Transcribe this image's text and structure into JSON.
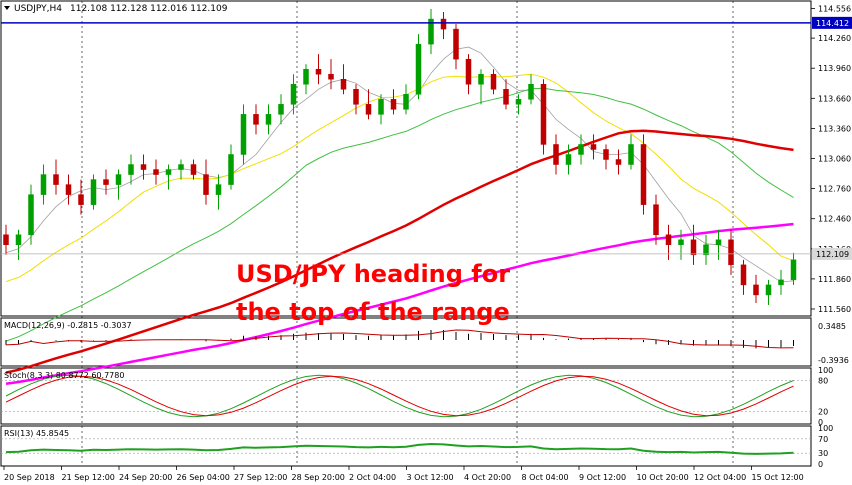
{
  "header": {
    "symbol": "USDJPY,H4",
    "ohlc": "112.108 112.128 112.016 112.109"
  },
  "annotation": "USD/JPY heading for the top of the range",
  "colors": {
    "bull": "#00a000",
    "bear": "#c00000",
    "sma20": "#a0a0a0",
    "sma50": "#f0e000",
    "sma100": "#40c040",
    "sma200": "#e00000",
    "sma240": "#ff00ff",
    "level": "#0000c0",
    "annotation": "#ff0000",
    "macd_signal": "#c00000",
    "stoch_main": "#20a020",
    "stoch_signal": "#e00000",
    "rsi": "#20a020"
  },
  "chart_data": [
    {
      "type": "candlestick",
      "name": "price",
      "ylim": [
        111.5,
        114.62
      ],
      "y_ticks": [
        "114.556",
        "114.260",
        "113.960",
        "113.660",
        "113.360",
        "113.060",
        "112.760",
        "112.460",
        "112.160",
        "111.860",
        "111.560"
      ],
      "level": {
        "value": 114.412,
        "label": "114.412"
      },
      "current": {
        "value": 112.109,
        "label": "112.109"
      },
      "ohlc": [
        [
          112.3,
          112.4,
          112.1,
          112.2
        ],
        [
          112.2,
          112.35,
          112.05,
          112.3
        ],
        [
          112.3,
          112.8,
          112.2,
          112.7
        ],
        [
          112.7,
          113.0,
          112.6,
          112.9
        ],
        [
          112.9,
          113.05,
          112.7,
          112.8
        ],
        [
          112.8,
          112.9,
          112.6,
          112.7
        ],
        [
          112.7,
          112.85,
          112.5,
          112.6
        ],
        [
          112.6,
          112.9,
          112.55,
          112.85
        ],
        [
          112.85,
          112.95,
          112.7,
          112.8
        ],
        [
          112.8,
          112.95,
          112.65,
          112.9
        ],
        [
          112.9,
          113.1,
          112.8,
          113.0
        ],
        [
          113.0,
          113.1,
          112.85,
          112.95
        ],
        [
          112.95,
          113.05,
          112.8,
          112.9
        ],
        [
          112.9,
          113.0,
          112.75,
          112.95
        ],
        [
          112.95,
          113.05,
          112.85,
          113.0
        ],
        [
          113.0,
          113.05,
          112.85,
          112.9
        ],
        [
          112.9,
          113.05,
          112.6,
          112.7
        ],
        [
          112.7,
          112.9,
          112.55,
          112.8
        ],
        [
          112.8,
          113.2,
          112.75,
          113.1
        ],
        [
          113.1,
          113.6,
          113.0,
          113.5
        ],
        [
          113.5,
          113.6,
          113.3,
          113.4
        ],
        [
          113.4,
          113.6,
          113.3,
          113.5
        ],
        [
          113.5,
          113.7,
          113.4,
          113.6
        ],
        [
          113.6,
          113.9,
          113.5,
          113.8
        ],
        [
          113.8,
          114.0,
          113.7,
          113.95
        ],
        [
          113.95,
          114.1,
          113.8,
          113.9
        ],
        [
          113.9,
          114.05,
          113.75,
          113.85
        ],
        [
          113.85,
          114.0,
          113.7,
          113.75
        ],
        [
          113.75,
          113.8,
          113.5,
          113.6
        ],
        [
          113.6,
          113.75,
          113.45,
          113.5
        ],
        [
          113.5,
          113.7,
          113.4,
          113.65
        ],
        [
          113.65,
          113.75,
          113.5,
          113.55
        ],
        [
          113.55,
          113.8,
          113.5,
          113.7
        ],
        [
          113.7,
          114.3,
          113.65,
          114.2
        ],
        [
          114.2,
          114.55,
          114.1,
          114.45
        ],
        [
          114.45,
          114.52,
          114.25,
          114.35
        ],
        [
          114.35,
          114.4,
          113.95,
          114.05
        ],
        [
          114.05,
          114.1,
          113.7,
          113.8
        ],
        [
          113.8,
          113.95,
          113.6,
          113.9
        ],
        [
          113.9,
          113.95,
          113.7,
          113.75
        ],
        [
          113.75,
          113.85,
          113.55,
          113.6
        ],
        [
          113.6,
          113.7,
          113.5,
          113.65
        ],
        [
          113.65,
          113.9,
          113.6,
          113.8
        ],
        [
          113.8,
          113.85,
          113.1,
          113.2
        ],
        [
          113.2,
          113.3,
          112.9,
          113.0
        ],
        [
          113.0,
          113.2,
          112.9,
          113.1
        ],
        [
          113.1,
          113.3,
          113.0,
          113.2
        ],
        [
          113.2,
          113.3,
          113.05,
          113.15
        ],
        [
          113.15,
          113.2,
          112.95,
          113.05
        ],
        [
          113.05,
          113.15,
          112.9,
          113.0
        ],
        [
          113.0,
          113.3,
          112.95,
          113.2
        ],
        [
          113.2,
          113.3,
          112.5,
          112.6
        ],
        [
          112.6,
          112.7,
          112.2,
          112.3
        ],
        [
          112.3,
          112.4,
          112.05,
          112.2
        ],
        [
          112.2,
          112.35,
          112.05,
          112.25
        ],
        [
          112.25,
          112.4,
          112.0,
          112.1
        ],
        [
          112.1,
          112.3,
          112.0,
          112.2
        ],
        [
          112.2,
          112.35,
          112.05,
          112.25
        ],
        [
          112.25,
          112.35,
          111.9,
          112.0
        ],
        [
          112.0,
          112.05,
          111.7,
          111.8
        ],
        [
          111.8,
          111.9,
          111.62,
          111.7
        ],
        [
          111.7,
          111.85,
          111.6,
          111.8
        ],
        [
          111.8,
          111.95,
          111.7,
          111.85
        ],
        [
          111.85,
          112.12,
          111.8,
          112.05
        ]
      ]
    },
    {
      "type": "histogram",
      "name": "macd",
      "title": "MACD(12,26,9) -0.2815 -0.3037",
      "y_ticks": [
        "0.3485",
        "-0.3936"
      ]
    },
    {
      "type": "line",
      "name": "stoch",
      "title": "Stoch(8,3,3) 80.8772 60.7780",
      "y_ticks": [
        "100",
        "80",
        "20",
        "0"
      ]
    },
    {
      "type": "line",
      "name": "rsi",
      "title": "RSI(13) 45.8545",
      "y_ticks": [
        "100",
        "70",
        "30",
        "0"
      ]
    }
  ],
  "x_axis": {
    "labels": [
      "20 Sep 2018",
      "21 Sep 12:00",
      "24 Sep 20:00",
      "26 Sep 04:00",
      "27 Sep 12:00",
      "28 Sep 20:00",
      "2 Oct 04:00",
      "3 Oct 12:00",
      "4 Oct 20:00",
      "8 Oct 04:00",
      "9 Oct 12:00",
      "10 Oct 20:00",
      "12 Oct 04:00",
      "15 Oct 12:00"
    ]
  }
}
